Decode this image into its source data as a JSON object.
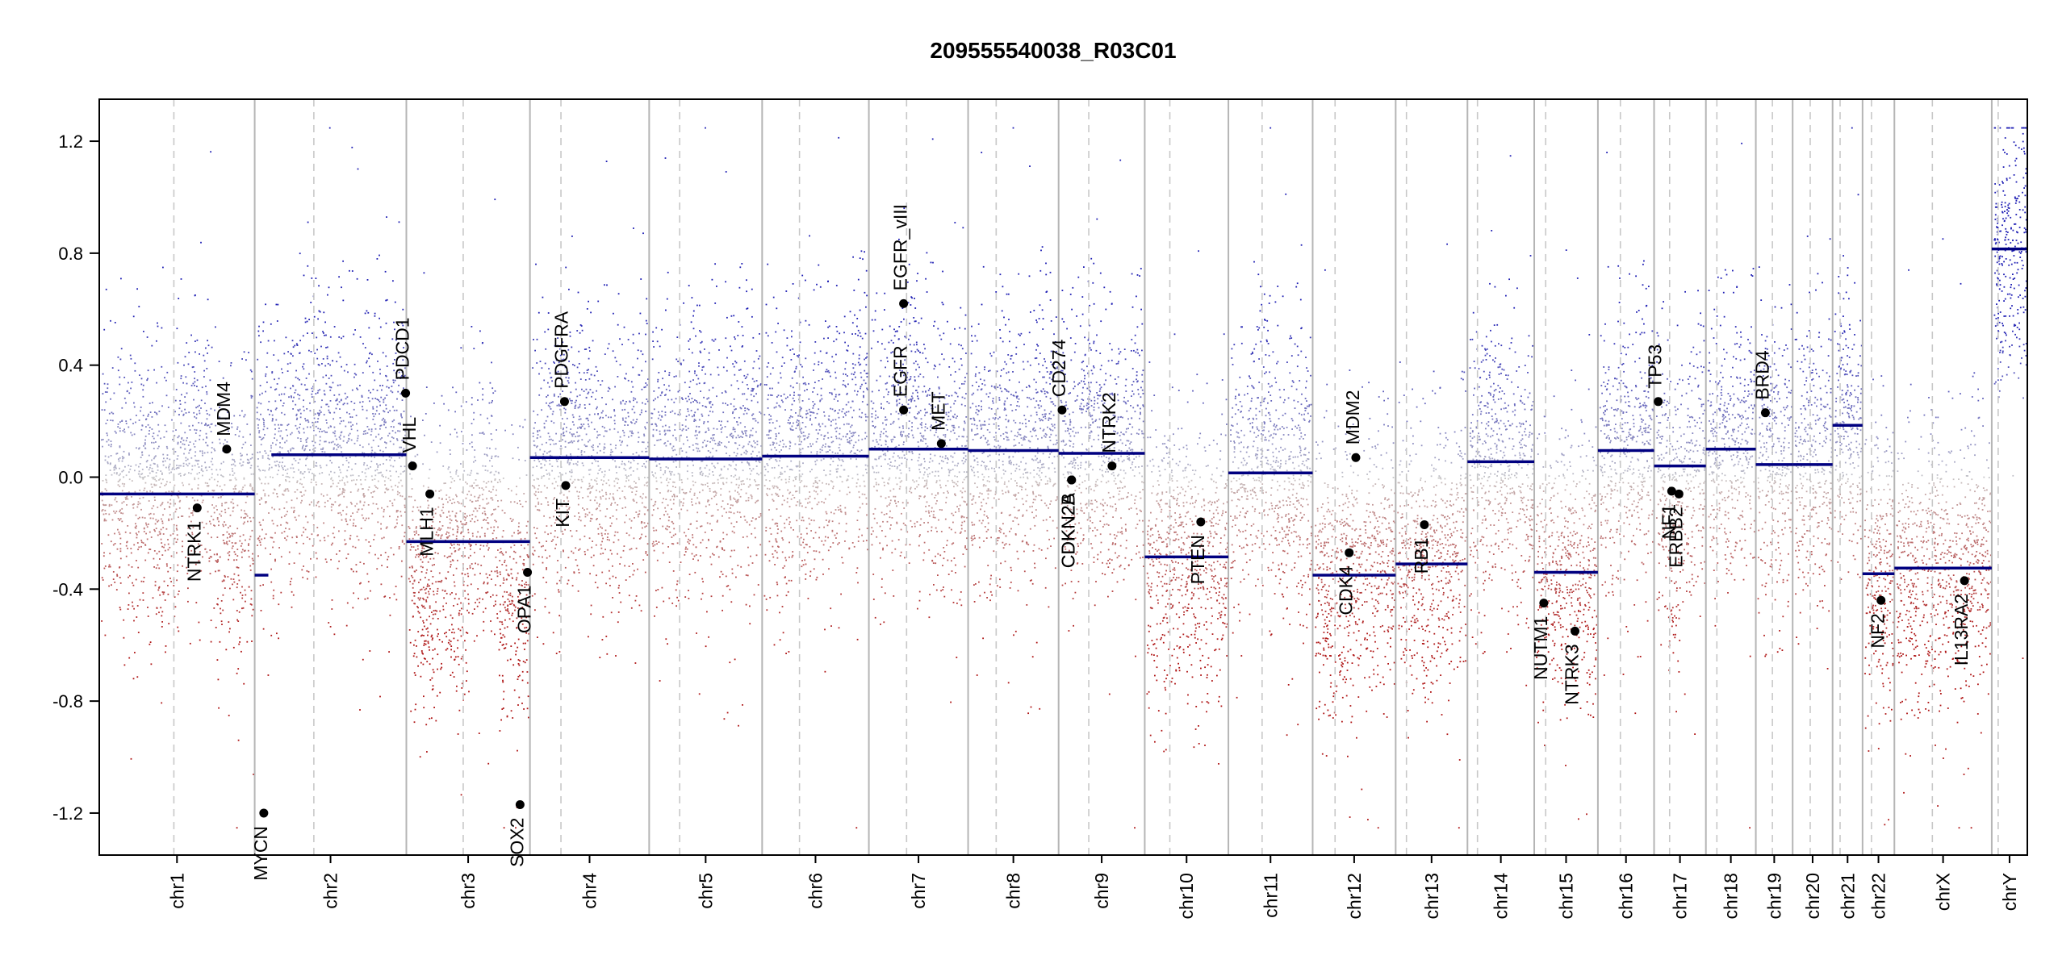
{
  "chart_data": {
    "type": "scatter",
    "title": "209555540038_R03C01",
    "xlabel": "",
    "ylabel": "",
    "ylim": [
      -1.35,
      1.35
    ],
    "y_ticks": [
      -1.2,
      -0.8,
      -0.4,
      0.0,
      0.4,
      0.8,
      1.2
    ],
    "y_tick_labels": [
      "-1.2",
      "-0.8",
      "-0.4",
      "0.0",
      "0.4",
      "0.8",
      "1.2"
    ],
    "colors": {
      "gain": "#2b2bb5",
      "neutral": "#bdbdbd",
      "loss": "#b01e1e",
      "segment": "#000080",
      "gene": "#000000"
    },
    "chromosomes": [
      {
        "name": "chr1",
        "length": 249.0,
        "centromere": 0.48,
        "level": [
          -0.04,
          -0.05,
          0.05,
          -0.18
        ],
        "segments": [
          {
            "from": 0.0,
            "to": 1.0,
            "value": -0.06
          }
        ]
      },
      {
        "name": "chr2",
        "length": 243.0,
        "centromere": 0.39,
        "level": [
          0.08,
          0.15,
          0.05,
          0.12
        ],
        "segments": [
          {
            "from": 0.0,
            "to": 0.09,
            "value": -0.35
          },
          {
            "from": 0.11,
            "to": 1.0,
            "value": 0.08
          }
        ]
      },
      {
        "name": "chr3",
        "length": 198.0,
        "centromere": 0.46,
        "level": [
          -0.35,
          -0.28,
          -0.12,
          -0.42
        ],
        "segments": [
          {
            "from": 0.0,
            "to": 1.0,
            "value": -0.23
          }
        ]
      },
      {
        "name": "chr4",
        "length": 191.0,
        "centromere": 0.26,
        "level": [
          0.05,
          0.1,
          0.0,
          0.08
        ],
        "segments": [
          {
            "from": 0.0,
            "to": 1.0,
            "value": 0.07
          }
        ]
      },
      {
        "name": "chr5",
        "length": 181.0,
        "centromere": 0.27,
        "level": [
          0.06,
          0.08,
          0.04,
          0.09
        ],
        "segments": [
          {
            "from": 0.0,
            "to": 1.0,
            "value": 0.065
          }
        ]
      },
      {
        "name": "chr6",
        "length": 171.0,
        "centromere": 0.35,
        "level": [
          0.05,
          0.12,
          0.1,
          0.18
        ],
        "segments": [
          {
            "from": 0.0,
            "to": 1.0,
            "value": 0.075
          }
        ]
      },
      {
        "name": "chr7",
        "length": 159.0,
        "centromere": 0.38,
        "level": [
          0.12,
          0.2,
          0.08,
          0.1
        ],
        "segments": [
          {
            "from": 0.0,
            "to": 1.0,
            "value": 0.1
          }
        ]
      },
      {
        "name": "chr8",
        "length": 145.0,
        "centromere": 0.31,
        "level": [
          0.08,
          0.12,
          0.06,
          0.15
        ],
        "segments": [
          {
            "from": 0.0,
            "to": 1.0,
            "value": 0.095
          }
        ]
      },
      {
        "name": "chr9",
        "length": 138.0,
        "centromere": 0.35,
        "level": [
          0.1,
          0.18,
          0.02,
          0.12
        ],
        "segments": [
          {
            "from": 0.0,
            "to": 1.0,
            "value": 0.085
          }
        ]
      },
      {
        "name": "chr10",
        "length": 134.0,
        "centromere": 0.3,
        "level": [
          -0.3,
          -0.25,
          -0.32,
          -0.28
        ],
        "segments": [
          {
            "from": 0.0,
            "to": 1.0,
            "value": -0.285
          }
        ]
      },
      {
        "name": "chr11",
        "length": 135.0,
        "centromere": 0.4,
        "level": [
          0.0,
          0.12,
          -0.04,
          0.02
        ],
        "segments": [
          {
            "from": 0.0,
            "to": 1.0,
            "value": 0.015
          }
        ]
      },
      {
        "name": "chr12",
        "length": 133.0,
        "centromere": 0.27,
        "level": [
          -0.34,
          -0.36,
          -0.32,
          -0.3
        ],
        "segments": [
          {
            "from": 0.0,
            "to": 1.0,
            "value": -0.35
          }
        ]
      },
      {
        "name": "chr13",
        "length": 115.0,
        "centromere": 0.15,
        "level": [
          -0.3,
          -0.32,
          -0.28,
          -0.25
        ],
        "segments": [
          {
            "from": 0.0,
            "to": 1.0,
            "value": -0.31
          }
        ]
      },
      {
        "name": "chr14",
        "length": 107.0,
        "centromere": 0.15,
        "level": [
          0.05,
          0.12,
          0.02,
          0.0
        ],
        "segments": [
          {
            "from": 0.0,
            "to": 1.0,
            "value": 0.055
          }
        ]
      },
      {
        "name": "chr15",
        "length": 102.0,
        "centromere": 0.18,
        "level": [
          -0.32,
          -0.36,
          -0.34,
          -0.3
        ],
        "segments": [
          {
            "from": 0.0,
            "to": 1.0,
            "value": -0.34
          }
        ]
      },
      {
        "name": "chr16",
        "length": 90.0,
        "centromere": 0.4,
        "level": [
          0.08,
          0.15,
          0.06,
          0.1
        ],
        "segments": [
          {
            "from": 0.0,
            "to": 1.0,
            "value": 0.095
          }
        ]
      },
      {
        "name": "chr17",
        "length": 83.0,
        "centromere": 0.3,
        "level": [
          0.05,
          -0.2,
          0.02,
          0.06
        ],
        "segments": [
          {
            "from": 0.0,
            "to": 1.0,
            "value": 0.04
          }
        ]
      },
      {
        "name": "chr18",
        "length": 80.0,
        "centromere": 0.22,
        "level": [
          0.1,
          0.14,
          0.08,
          0.12
        ],
        "segments": [
          {
            "from": 0.0,
            "to": 1.0,
            "value": 0.1
          }
        ]
      },
      {
        "name": "chr19",
        "length": 59.0,
        "centromere": 0.45,
        "level": [
          0.04,
          0.12,
          0.02,
          0.06
        ],
        "segments": [
          {
            "from": 0.0,
            "to": 1.0,
            "value": 0.045
          }
        ]
      },
      {
        "name": "chr20",
        "length": 64.0,
        "centromere": 0.44,
        "level": [
          0.05,
          0.1,
          0.04,
          0.06
        ],
        "segments": [
          {
            "from": 0.0,
            "to": 1.0,
            "value": 0.045
          }
        ]
      },
      {
        "name": "chr21",
        "length": 48.0,
        "centromere": 0.25,
        "level": [
          0.18,
          0.22,
          0.15,
          0.2
        ],
        "segments": [
          {
            "from": 0.0,
            "to": 1.0,
            "value": 0.185
          }
        ]
      },
      {
        "name": "chr22",
        "length": 51.0,
        "centromere": 0.28,
        "level": [
          -0.34,
          -0.3,
          -0.36,
          -0.32
        ],
        "segments": [
          {
            "from": 0.0,
            "to": 1.0,
            "value": -0.345
          }
        ]
      },
      {
        "name": "chrX",
        "length": 156.0,
        "centromere": 0.39,
        "level": [
          -0.34,
          -0.32,
          -0.36,
          -0.3
        ],
        "segments": [
          {
            "from": 0.0,
            "to": 1.0,
            "value": -0.325
          }
        ]
      },
      {
        "name": "chrY",
        "length": 57.0,
        "centromere": 0.18,
        "level": [
          0.82,
          0.85,
          0.8,
          0.84
        ],
        "segments": [
          {
            "from": 0.0,
            "to": 1.0,
            "value": 0.815
          }
        ]
      }
    ],
    "genes": [
      {
        "name": "NTRK1",
        "chr": "chr1",
        "pos": 0.63,
        "value": -0.11
      },
      {
        "name": "MDM4",
        "chr": "chr1",
        "pos": 0.82,
        "value": 0.1
      },
      {
        "name": "MYCN",
        "chr": "chr2",
        "pos": 0.06,
        "value": -1.2
      },
      {
        "name": "PDCD1",
        "chr": "chr2",
        "pos": 0.995,
        "value": 0.3
      },
      {
        "name": "VHL",
        "chr": "chr3",
        "pos": 0.05,
        "value": 0.04
      },
      {
        "name": "MLH1",
        "chr": "chr3",
        "pos": 0.19,
        "value": -0.06
      },
      {
        "name": "SOX2",
        "chr": "chr3",
        "pos": 0.92,
        "value": -1.17
      },
      {
        "name": "OPA1",
        "chr": "chr3",
        "pos": 0.98,
        "value": -0.34
      },
      {
        "name": "PDGFRA",
        "chr": "chr4",
        "pos": 0.29,
        "value": 0.27
      },
      {
        "name": "KIT",
        "chr": "chr4",
        "pos": 0.3,
        "value": -0.03
      },
      {
        "name": "EGFR",
        "chr": "chr7",
        "pos": 0.35,
        "value": 0.24
      },
      {
        "name": "EGFR_vIII",
        "chr": "chr7",
        "pos": 0.35,
        "value": 0.62
      },
      {
        "name": "MET",
        "chr": "chr7",
        "pos": 0.73,
        "value": 0.12
      },
      {
        "name": "CD274",
        "chr": "chr9",
        "pos": 0.04,
        "value": 0.24
      },
      {
        "name": "CDKN2A",
        "chr": "chr9",
        "pos": 0.15,
        "value": -0.01
      },
      {
        "name": "CDKN2B",
        "chr": "chr9",
        "pos": 0.15,
        "value": -0.01
      },
      {
        "name": "NTRK2",
        "chr": "chr9",
        "pos": 0.62,
        "value": 0.04
      },
      {
        "name": "PTEN",
        "chr": "chr10",
        "pos": 0.67,
        "value": -0.16
      },
      {
        "name": "MDM2",
        "chr": "chr12",
        "pos": 0.52,
        "value": 0.07
      },
      {
        "name": "CDK4",
        "chr": "chr12",
        "pos": 0.44,
        "value": -0.27
      },
      {
        "name": "RB1",
        "chr": "chr13",
        "pos": 0.4,
        "value": -0.17
      },
      {
        "name": "NUTM1",
        "chr": "chr15",
        "pos": 0.15,
        "value": -0.45
      },
      {
        "name": "NTRK3",
        "chr": "chr15",
        "pos": 0.64,
        "value": -0.55
      },
      {
        "name": "TP53",
        "chr": "chr17",
        "pos": 0.08,
        "value": 0.27
      },
      {
        "name": "NF1",
        "chr": "chr17",
        "pos": 0.34,
        "value": -0.05
      },
      {
        "name": "ERBB2",
        "chr": "chr17",
        "pos": 0.48,
        "value": -0.06
      },
      {
        "name": "BRD4",
        "chr": "chr19",
        "pos": 0.26,
        "value": 0.23
      },
      {
        "name": "NF2",
        "chr": "chr22",
        "pos": 0.58,
        "value": -0.44
      },
      {
        "name": "IL13RA2",
        "chr": "chrX",
        "pos": 0.72,
        "value": -0.37
      }
    ]
  }
}
